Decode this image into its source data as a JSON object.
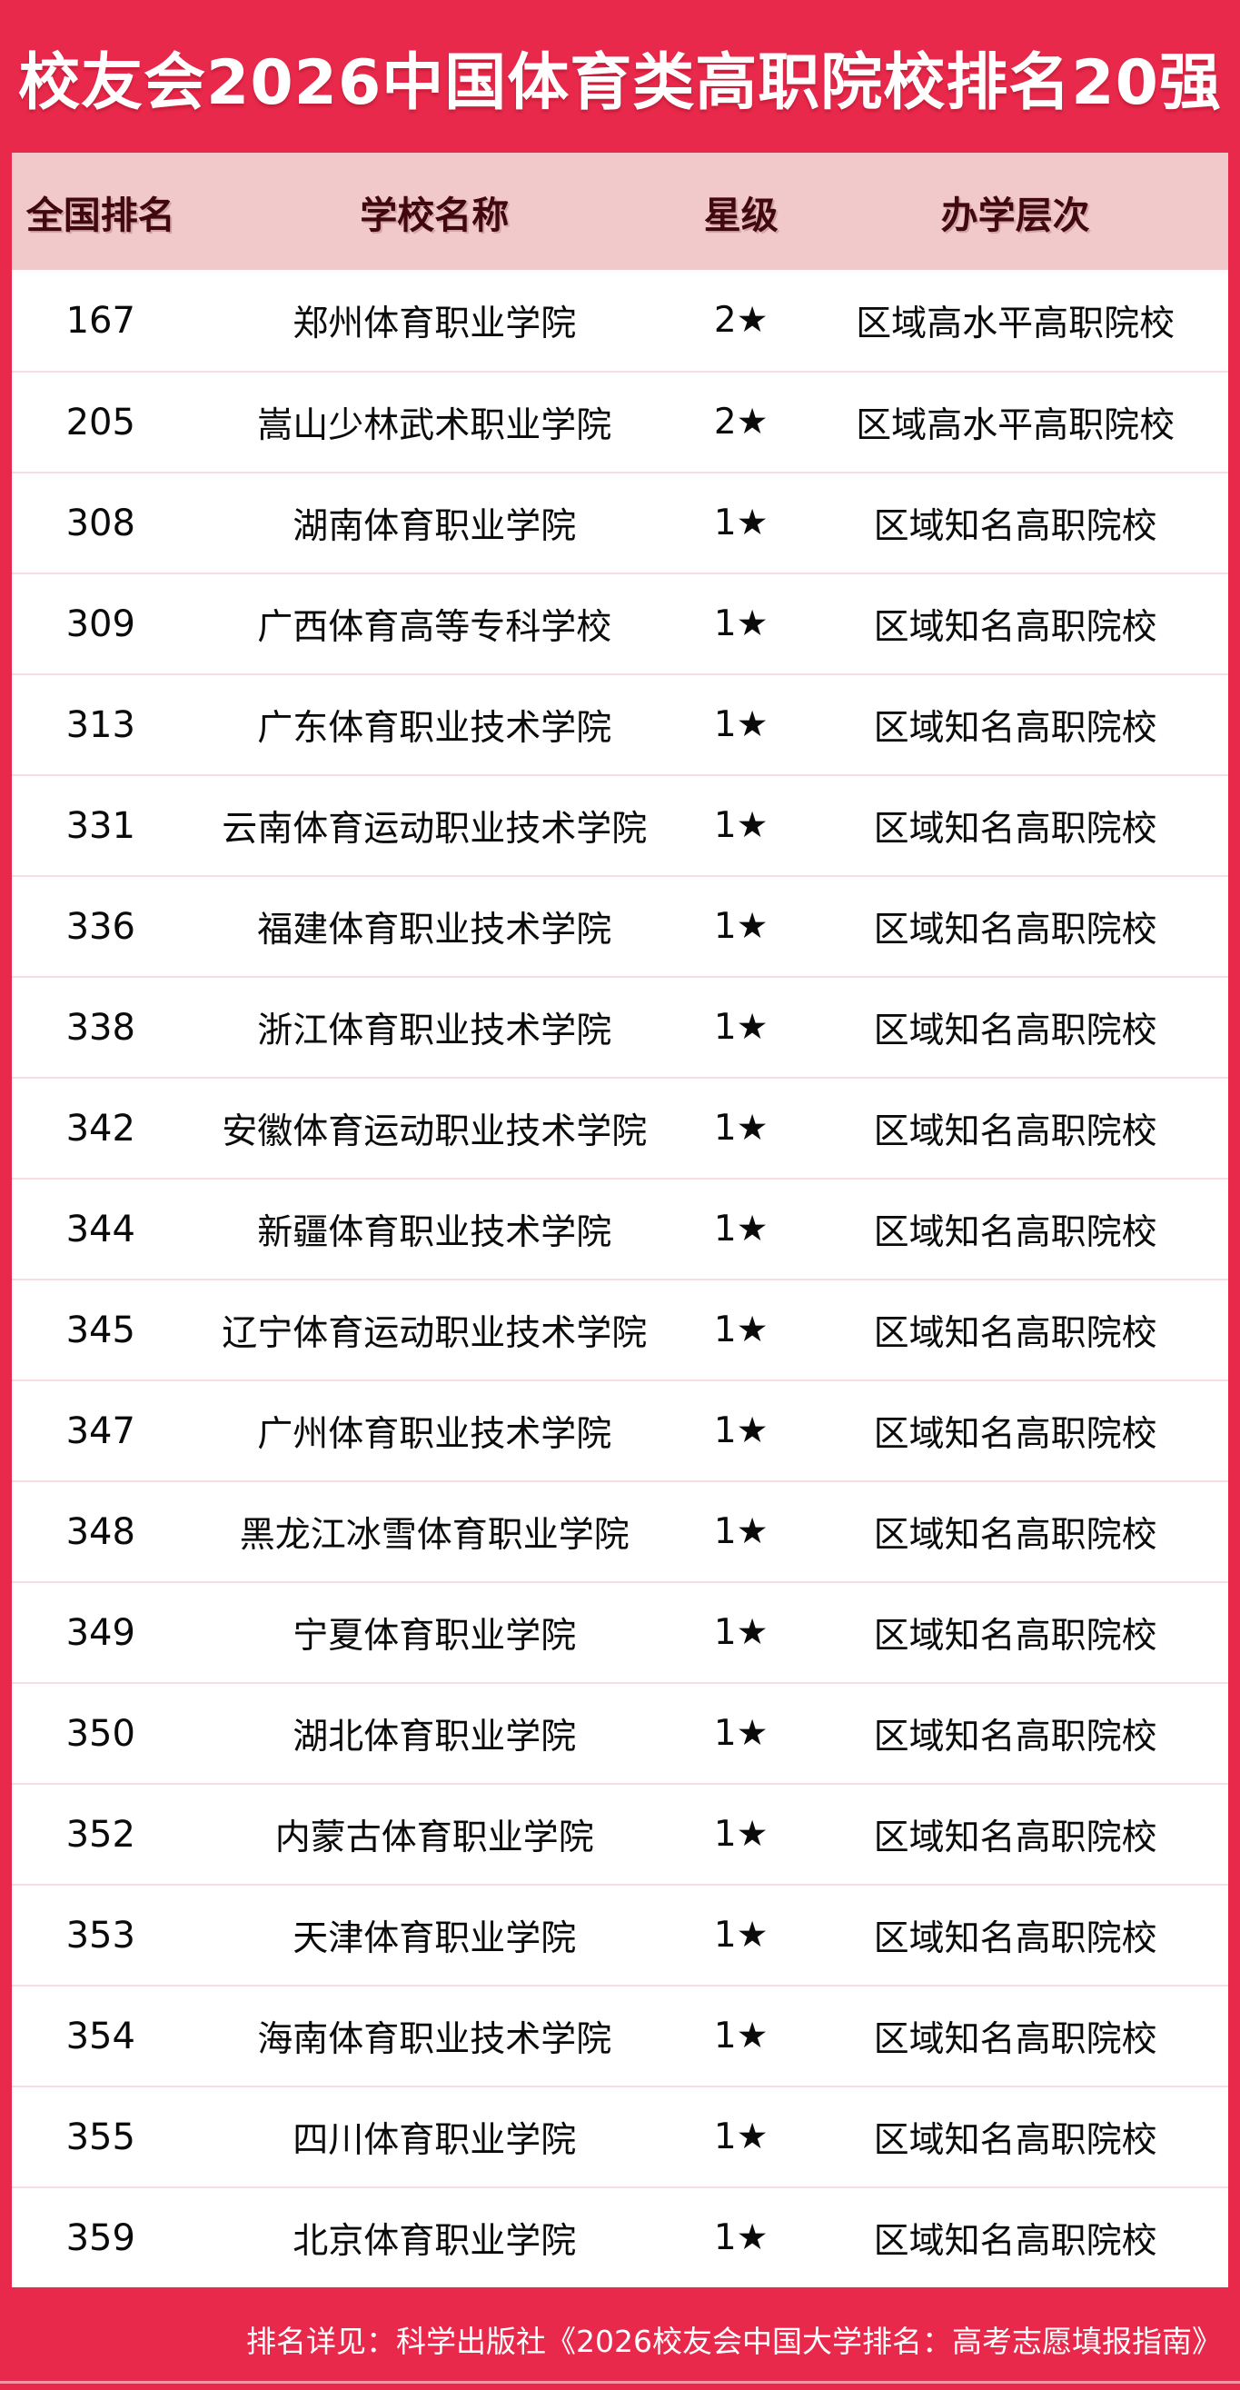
{
  "title": "校友会2026中国体育类高职院校排名20强",
  "table": {
    "columns": [
      "全国排名",
      "学校名称",
      "星级",
      "办学层次"
    ],
    "rows": [
      {
        "rank": "167",
        "school": "郑州体育职业学院",
        "star": "2★",
        "level": "区域高水平高职院校"
      },
      {
        "rank": "205",
        "school": "嵩山少林武术职业学院",
        "star": "2★",
        "level": "区域高水平高职院校"
      },
      {
        "rank": "308",
        "school": "湖南体育职业学院",
        "star": "1★",
        "level": "区域知名高职院校"
      },
      {
        "rank": "309",
        "school": "广西体育高等专科学校",
        "star": "1★",
        "level": "区域知名高职院校"
      },
      {
        "rank": "313",
        "school": "广东体育职业技术学院",
        "star": "1★",
        "level": "区域知名高职院校"
      },
      {
        "rank": "331",
        "school": "云南体育运动职业技术学院",
        "star": "1★",
        "level": "区域知名高职院校"
      },
      {
        "rank": "336",
        "school": "福建体育职业技术学院",
        "star": "1★",
        "level": "区域知名高职院校"
      },
      {
        "rank": "338",
        "school": "浙江体育职业技术学院",
        "star": "1★",
        "level": "区域知名高职院校"
      },
      {
        "rank": "342",
        "school": "安徽体育运动职业技术学院",
        "star": "1★",
        "level": "区域知名高职院校"
      },
      {
        "rank": "344",
        "school": "新疆体育职业技术学院",
        "star": "1★",
        "level": "区域知名高职院校"
      },
      {
        "rank": "345",
        "school": "辽宁体育运动职业技术学院",
        "star": "1★",
        "level": "区域知名高职院校"
      },
      {
        "rank": "347",
        "school": "广州体育职业技术学院",
        "star": "1★",
        "level": "区域知名高职院校"
      },
      {
        "rank": "348",
        "school": "黑龙江冰雪体育职业学院",
        "star": "1★",
        "level": "区域知名高职院校"
      },
      {
        "rank": "349",
        "school": "宁夏体育职业学院",
        "star": "1★",
        "level": "区域知名高职院校"
      },
      {
        "rank": "350",
        "school": "湖北体育职业学院",
        "star": "1★",
        "level": "区域知名高职院校"
      },
      {
        "rank": "352",
        "school": "内蒙古体育职业学院",
        "star": "1★",
        "level": "区域知名高职院校"
      },
      {
        "rank": "353",
        "school": "天津体育职业学院",
        "star": "1★",
        "level": "区域知名高职院校"
      },
      {
        "rank": "354",
        "school": "海南体育职业技术学院",
        "star": "1★",
        "level": "区域知名高职院校"
      },
      {
        "rank": "355",
        "school": "四川体育职业学院",
        "star": "1★",
        "level": "区域知名高职院校"
      },
      {
        "rank": "359",
        "school": "北京体育职业学院",
        "star": "1★",
        "level": "区域知名高职院校"
      }
    ]
  },
  "footer": {
    "source_text": "排名详见：科学出版社《2026校友会中国大学排名：高考志愿填报指南》"
  },
  "colors": {
    "red": "#e9294b",
    "pink_header_bg": "#f2c9cb",
    "header_text": "#41090f",
    "row_divider": "#f8dcdf",
    "row_text": "#0b0b0b",
    "title_text": "#ffffff"
  },
  "chart_data": {
    "type": "table",
    "title": "校友会2026中国体育类高职院校排名20强",
    "columns": [
      "全国排名",
      "学校名称",
      "星级",
      "办学层次"
    ],
    "rows": [
      [
        "167",
        "郑州体育职业学院",
        "2★",
        "区域高水平高职院校"
      ],
      [
        "205",
        "嵩山少林武术职业学院",
        "2★",
        "区域高水平高职院校"
      ],
      [
        "308",
        "湖南体育职业学院",
        "1★",
        "区域知名高职院校"
      ],
      [
        "309",
        "广西体育高等专科学校",
        "1★",
        "区域知名高职院校"
      ],
      [
        "313",
        "广东体育职业技术学院",
        "1★",
        "区域知名高职院校"
      ],
      [
        "331",
        "云南体育运动职业技术学院",
        "1★",
        "区域知名高职院校"
      ],
      [
        "336",
        "福建体育职业技术学院",
        "1★",
        "区域知名高职院校"
      ],
      [
        "338",
        "浙江体育职业技术学院",
        "1★",
        "区域知名高职院校"
      ],
      [
        "342",
        "安徽体育运动职业技术学院",
        "1★",
        "区域知名高职院校"
      ],
      [
        "344",
        "新疆体育职业技术学院",
        "1★",
        "区域知名高职院校"
      ],
      [
        "345",
        "辽宁体育运动职业技术学院",
        "1★",
        "区域知名高职院校"
      ],
      [
        "347",
        "广州体育职业技术学院",
        "1★",
        "区域知名高职院校"
      ],
      [
        "348",
        "黑龙江冰雪体育职业学院",
        "1★",
        "区域知名高职院校"
      ],
      [
        "349",
        "宁夏体育职业学院",
        "1★",
        "区域知名高职院校"
      ],
      [
        "350",
        "湖北体育职业学院",
        "1★",
        "区域知名高职院校"
      ],
      [
        "352",
        "内蒙古体育职业学院",
        "1★",
        "区域知名高职院校"
      ],
      [
        "353",
        "天津体育职业学院",
        "1★",
        "区域知名高职院校"
      ],
      [
        "354",
        "海南体育职业技术学院",
        "1★",
        "区域知名高职院校"
      ],
      [
        "355",
        "四川体育职业学院",
        "1★",
        "区域知名高职院校"
      ],
      [
        "359",
        "北京体育职业学院",
        "1★",
        "区域知名高职院校"
      ]
    ],
    "footnote": "排名详见：科学出版社《2026校友会中国大学排名：高考志愿填报指南》"
  }
}
